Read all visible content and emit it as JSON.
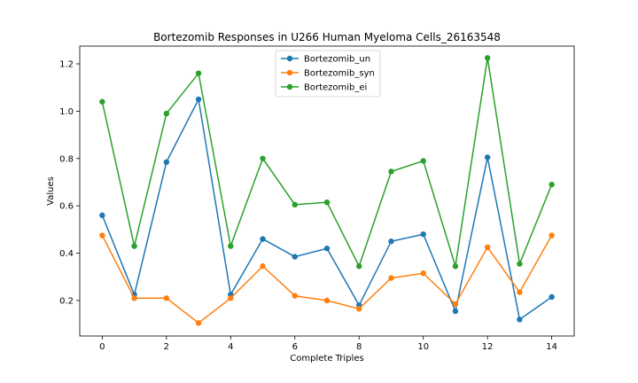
{
  "chart_data": {
    "type": "line",
    "title": "Bortezomib Responses in U266 Human Myeloma Cells_26163548",
    "xlabel": "Complete Triples",
    "ylabel": "Values",
    "x": [
      0,
      1,
      2,
      3,
      4,
      5,
      6,
      7,
      8,
      9,
      10,
      11,
      12,
      13,
      14
    ],
    "xticks": [
      "0",
      "2",
      "4",
      "6",
      "8",
      "10",
      "12",
      "14"
    ],
    "yticks": [
      "0.2",
      "0.4",
      "0.6",
      "0.8",
      "1.0",
      "1.2"
    ],
    "xlim": [
      -0.7,
      14.7
    ],
    "ylim": [
      0.05,
      1.275
    ],
    "grid": false,
    "legend_position": "top-center",
    "series": [
      {
        "name": "Bortezomib_un",
        "color": "#1f77b4",
        "values": [
          0.56,
          0.225,
          0.785,
          1.05,
          0.225,
          0.46,
          0.385,
          0.42,
          0.18,
          0.45,
          0.48,
          0.155,
          0.805,
          0.12,
          0.215
        ]
      },
      {
        "name": "Bortezomib_syn",
        "color": "#ff7f0e",
        "values": [
          0.475,
          0.21,
          0.21,
          0.105,
          0.21,
          0.345,
          0.22,
          0.2,
          0.165,
          0.295,
          0.315,
          0.185,
          0.425,
          0.235,
          0.475
        ]
      },
      {
        "name": "Bortezomib_ei",
        "color": "#2ca02c",
        "values": [
          1.04,
          0.43,
          0.99,
          1.16,
          0.43,
          0.8,
          0.605,
          0.615,
          0.345,
          0.745,
          0.79,
          0.345,
          1.225,
          0.355,
          0.69
        ]
      }
    ]
  }
}
